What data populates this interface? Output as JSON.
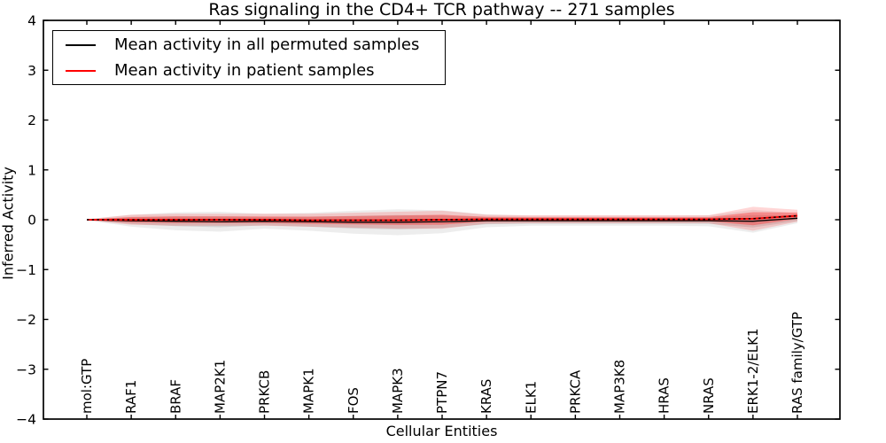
{
  "figure": {
    "title": "Ras signaling in the CD4+ TCR pathway -- 271 samples",
    "xlabel": "Cellular Entities",
    "ylabel": "Inferred Activity"
  },
  "legend": {
    "position": "upper left",
    "items": [
      {
        "label": "Mean activity in all permuted samples",
        "color": "#000000"
      },
      {
        "label": "Mean activity in patient samples",
        "color": "#ff0000"
      }
    ]
  },
  "chart_data": {
    "type": "line",
    "title": "Ras signaling in the CD4+ TCR pathway -- 271 samples",
    "xlabel": "Cellular Entities",
    "ylabel": "Inferred Activity",
    "ylim": [
      -4,
      4
    ],
    "yticks": [
      4,
      3,
      2,
      1,
      0,
      -1,
      -2,
      -3,
      -4
    ],
    "grid": false,
    "legend_position": "upper left",
    "categories": [
      "mol:GTP",
      "RAF1",
      "BRAF",
      "MAP2K1",
      "PRKCB",
      "MAPK1",
      "FOS",
      "MAPK3",
      "PTPN7",
      "KRAS",
      "ELK1",
      "PRKCA",
      "MAP3K8",
      "HRAS",
      "NRAS",
      "ERK1-2/ELK1",
      "RAS family/GTP"
    ],
    "series": [
      {
        "name": "Mean activity in all permuted samples",
        "color": "#000000",
        "band_color": "#000000",
        "values": [
          0,
          -0.02,
          -0.03,
          -0.04,
          -0.03,
          -0.04,
          -0.05,
          -0.05,
          -0.04,
          -0.02,
          -0.02,
          -0.02,
          -0.02,
          -0.02,
          -0.02,
          -0.03,
          0.03
        ],
        "band": [
          0.01,
          0.12,
          0.18,
          0.2,
          0.15,
          0.18,
          0.23,
          0.26,
          0.23,
          0.13,
          0.1,
          0.1,
          0.1,
          0.1,
          0.11,
          0.23,
          0.1
        ]
      },
      {
        "name": "Mean activity in patient samples",
        "color": "#ff0000",
        "band_color": "#ff0000",
        "values": [
          0,
          0,
          0,
          0,
          0,
          -0.01,
          -0.01,
          -0.01,
          0,
          0.01,
          0.01,
          0.01,
          0.01,
          0.01,
          0.01,
          0.02,
          0.08
        ],
        "band": [
          0.01,
          0.1,
          0.12,
          0.12,
          0.12,
          0.13,
          0.15,
          0.17,
          0.18,
          0.09,
          0.08,
          0.08,
          0.08,
          0.08,
          0.08,
          0.24,
          0.12
        ]
      }
    ]
  }
}
